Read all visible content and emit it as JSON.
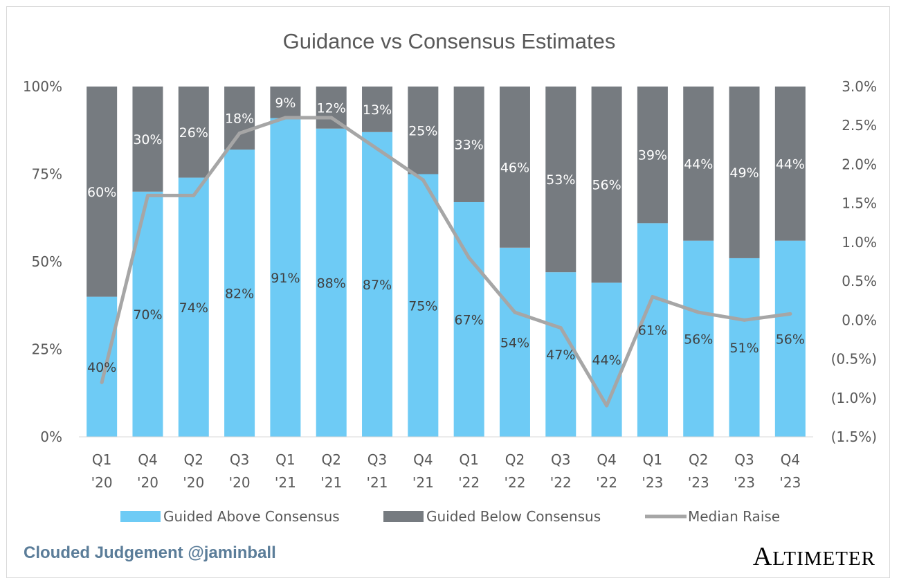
{
  "chart_data": {
    "type": "bar",
    "stacked": true,
    "title": "Guidance vs Consensus Estimates",
    "categories": [
      [
        "Q1",
        "'20"
      ],
      [
        "Q4",
        "'20"
      ],
      [
        "Q2",
        "'20"
      ],
      [
        "Q3",
        "'20"
      ],
      [
        "Q1",
        "'21"
      ],
      [
        "Q2",
        "'21"
      ],
      [
        "Q3",
        "'21"
      ],
      [
        "Q4",
        "'21"
      ],
      [
        "Q1",
        "'22"
      ],
      [
        "Q2",
        "'22"
      ],
      [
        "Q3",
        "'22"
      ],
      [
        "Q4",
        "'22"
      ],
      [
        "Q1",
        "'23"
      ],
      [
        "Q2",
        "'23"
      ],
      [
        "Q3",
        "'23"
      ],
      [
        "Q4",
        "'23"
      ]
    ],
    "series": [
      {
        "name": "Guided Above Consensus",
        "type": "bar",
        "color": "#6ecbf5",
        "values": [
          40,
          70,
          74,
          82,
          91,
          88,
          87,
          75,
          67,
          54,
          47,
          44,
          61,
          56,
          51,
          56
        ],
        "labels": [
          "40%",
          "70%",
          "74%",
          "82%",
          "91%",
          "88%",
          "87%",
          "75%",
          "67%",
          "54%",
          "47%",
          "44%",
          "61%",
          "56%",
          "51%",
          "56%"
        ]
      },
      {
        "name": "Guided Below Consensus",
        "type": "bar",
        "color": "#767b80",
        "values": [
          60,
          30,
          26,
          18,
          9,
          12,
          13,
          25,
          33,
          46,
          53,
          56,
          39,
          44,
          49,
          44
        ],
        "labels": [
          "60%",
          "30%",
          "26%",
          "18%",
          "9%",
          "12%",
          "13%",
          "25%",
          "33%",
          "46%",
          "53%",
          "56%",
          "39%",
          "44%",
          "49%",
          "44%"
        ]
      },
      {
        "name": "Median Raise",
        "type": "line",
        "axis": "right",
        "color": "#a6a6a6",
        "values": [
          -0.8,
          1.6,
          1.6,
          2.4,
          2.6,
          2.6,
          2.2,
          1.8,
          0.8,
          0.1,
          -0.1,
          -1.1,
          0.3,
          0.1,
          0.0,
          0.08
        ]
      }
    ],
    "y_left": {
      "range": [
        0,
        100
      ],
      "ticks": [
        0,
        25,
        50,
        75,
        100
      ],
      "tick_labels": [
        "0%",
        "25%",
        "50%",
        "75%",
        "100%"
      ]
    },
    "y_right": {
      "range": [
        -1.5,
        3.0
      ],
      "ticks": [
        -1.5,
        -1.0,
        -0.5,
        0.0,
        0.5,
        1.0,
        1.5,
        2.0,
        2.5,
        3.0
      ],
      "tick_labels": [
        "(1.5%)",
        "(1.0%)",
        "(0.5%)",
        "0.0%",
        "0.5%",
        "1.0%",
        "1.5%",
        "2.0%",
        "2.5%",
        "3.0%"
      ]
    },
    "legend_position": "bottom",
    "grid": false
  },
  "footer": {
    "left": "Clouded Judgement @jaminball",
    "right": "Altimeter"
  }
}
